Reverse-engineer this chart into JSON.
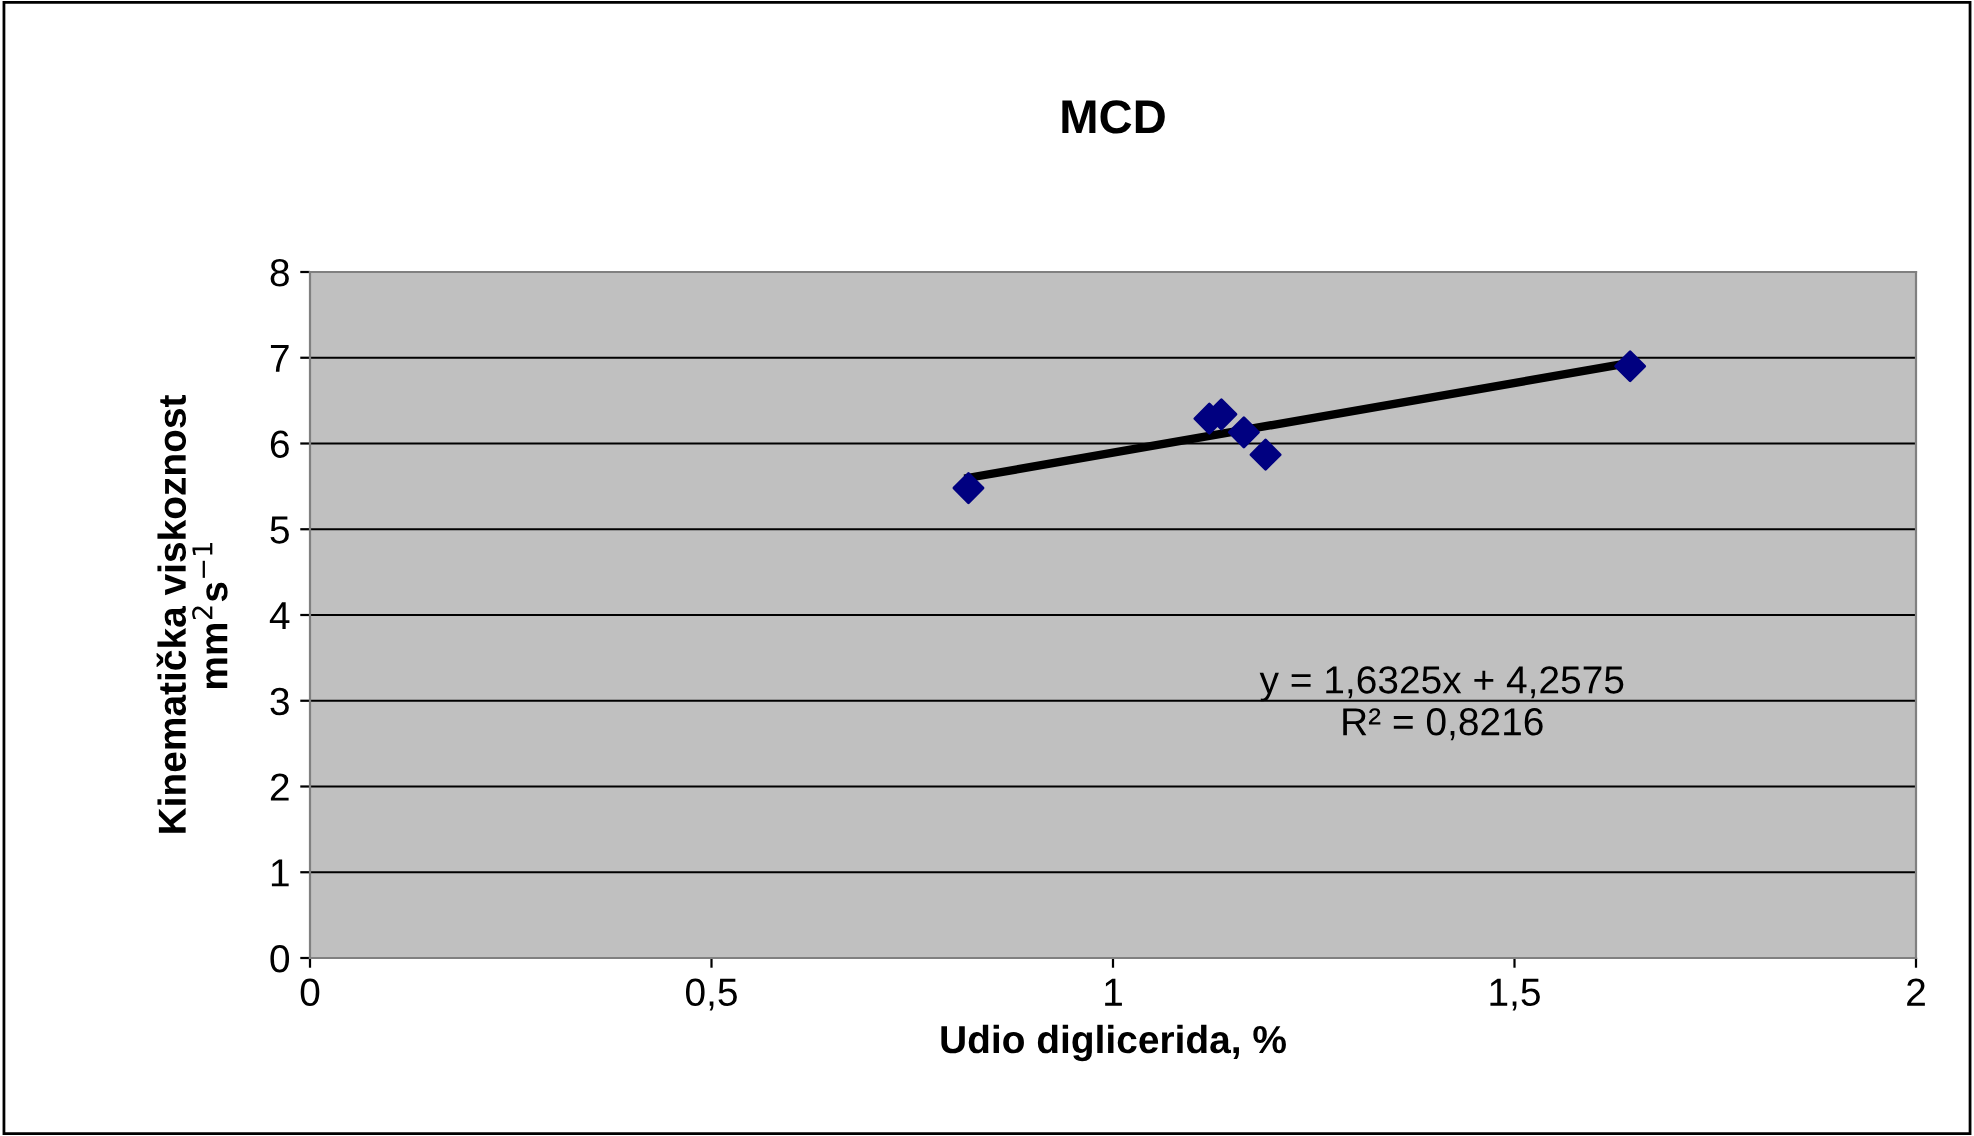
{
  "chart_data": {
    "type": "scatter",
    "title": "MCD",
    "xlabel": "Udio diglicerida, %",
    "ylabel": "Kinematička viskoznost\nmm$^{2}$s$^{−1}$",
    "series": [
      {
        "color": "#000080",
        "marker": "diamond",
        "x": [
          0.82,
          1.12,
          1.135,
          1.163,
          1.19,
          1.644
        ],
        "values": [
          5.48,
          6.29,
          6.34,
          6.13,
          5.87,
          6.9
        ]
      },
      {
        "type": "line",
        "color": "#000000",
        "marker": "none",
        "x": [
          0.82,
          1.644
        ],
        "values": [
          5.6,
          6.94
        ]
      }
    ],
    "annotations": [
      "y = 1,6325x + 4,2575\nR² = 0,8216"
    ],
    "xlim": [
      0,
      2
    ],
    "xticks": [
      0,
      {
        "value": 0.5,
        "label": "0,5"
      },
      1,
      {
        "value": 1.5,
        "label": "1,5"
      },
      2
    ],
    "ylim": [
      0,
      8
    ],
    "yticks": [
      0,
      1,
      2,
      3,
      4,
      5,
      6,
      7,
      8
    ],
    "grid": "y",
    "legend": false
  }
}
